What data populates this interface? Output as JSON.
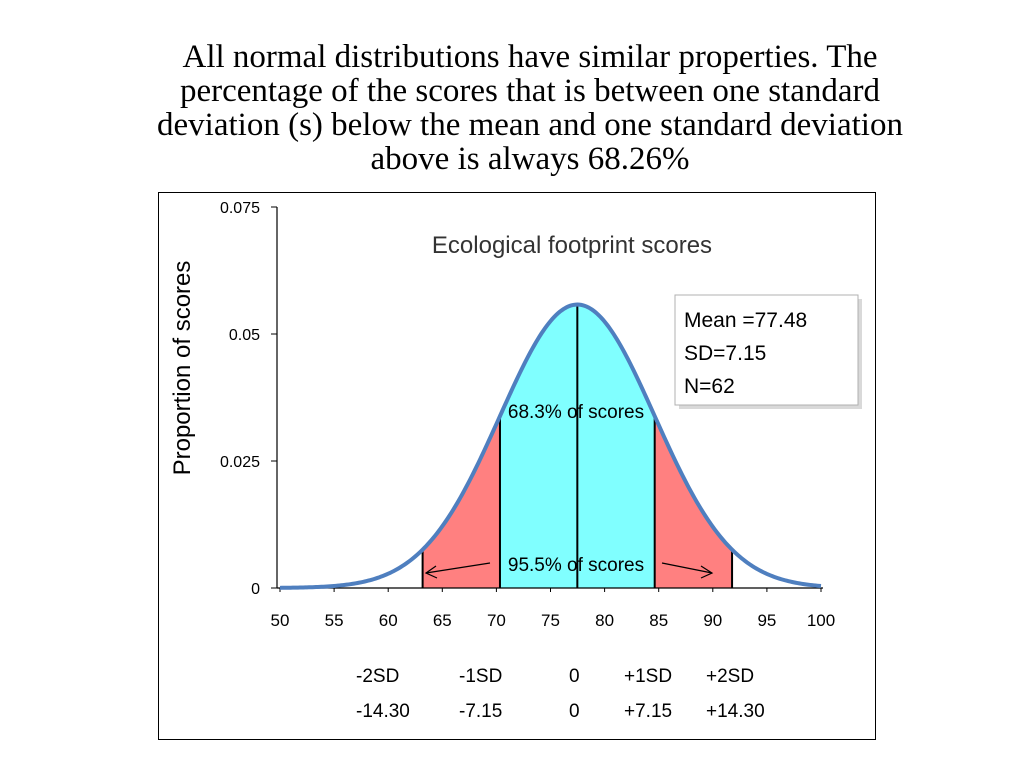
{
  "slide": {
    "title_lines": [
      "All normal distributions have similar properties. The",
      "percentage of the scores that is between one standard",
      "deviation (s) below the mean and one standard deviation",
      "above is always 68.26%"
    ]
  },
  "chart_data": {
    "type": "area",
    "title": "Ecological  footprint scores",
    "xlabel": "",
    "ylabel": "Proportion of scores",
    "xlim": [
      50,
      100
    ],
    "ylim": [
      0,
      0.075
    ],
    "x_ticks": [
      "50",
      "55",
      "60",
      "65",
      "70",
      "75",
      "80",
      "85",
      "90",
      "95",
      "100"
    ],
    "y_ticks": [
      "0",
      "0.025",
      "0.05",
      "0.075"
    ],
    "distribution": {
      "kind": "normal",
      "mean": 77.48,
      "sd": 7.15
    },
    "stats_box": [
      "Mean =77.48",
      "SD=7.15",
      "N=62"
    ],
    "regions": [
      {
        "label": "68.3% of scores",
        "from": 70.33,
        "to": 84.63,
        "color": "#80FFFF"
      },
      {
        "label": "95.5% of scores",
        "from": 63.18,
        "to": 91.78,
        "color": "#FF8080"
      }
    ],
    "markers": [
      63.18,
      70.33,
      77.48,
      84.63,
      91.78
    ],
    "sd_rows": [
      [
        "-2SD",
        "-1SD",
        "0",
        "+1SD",
        "+2SD"
      ],
      [
        "-14.30",
        "-7.15",
        "0",
        "+7.15",
        "+14.30"
      ]
    ],
    "colors": {
      "curve": "#4F7FBF",
      "inner": "#80FFFF",
      "outer": "#FF8080"
    }
  }
}
